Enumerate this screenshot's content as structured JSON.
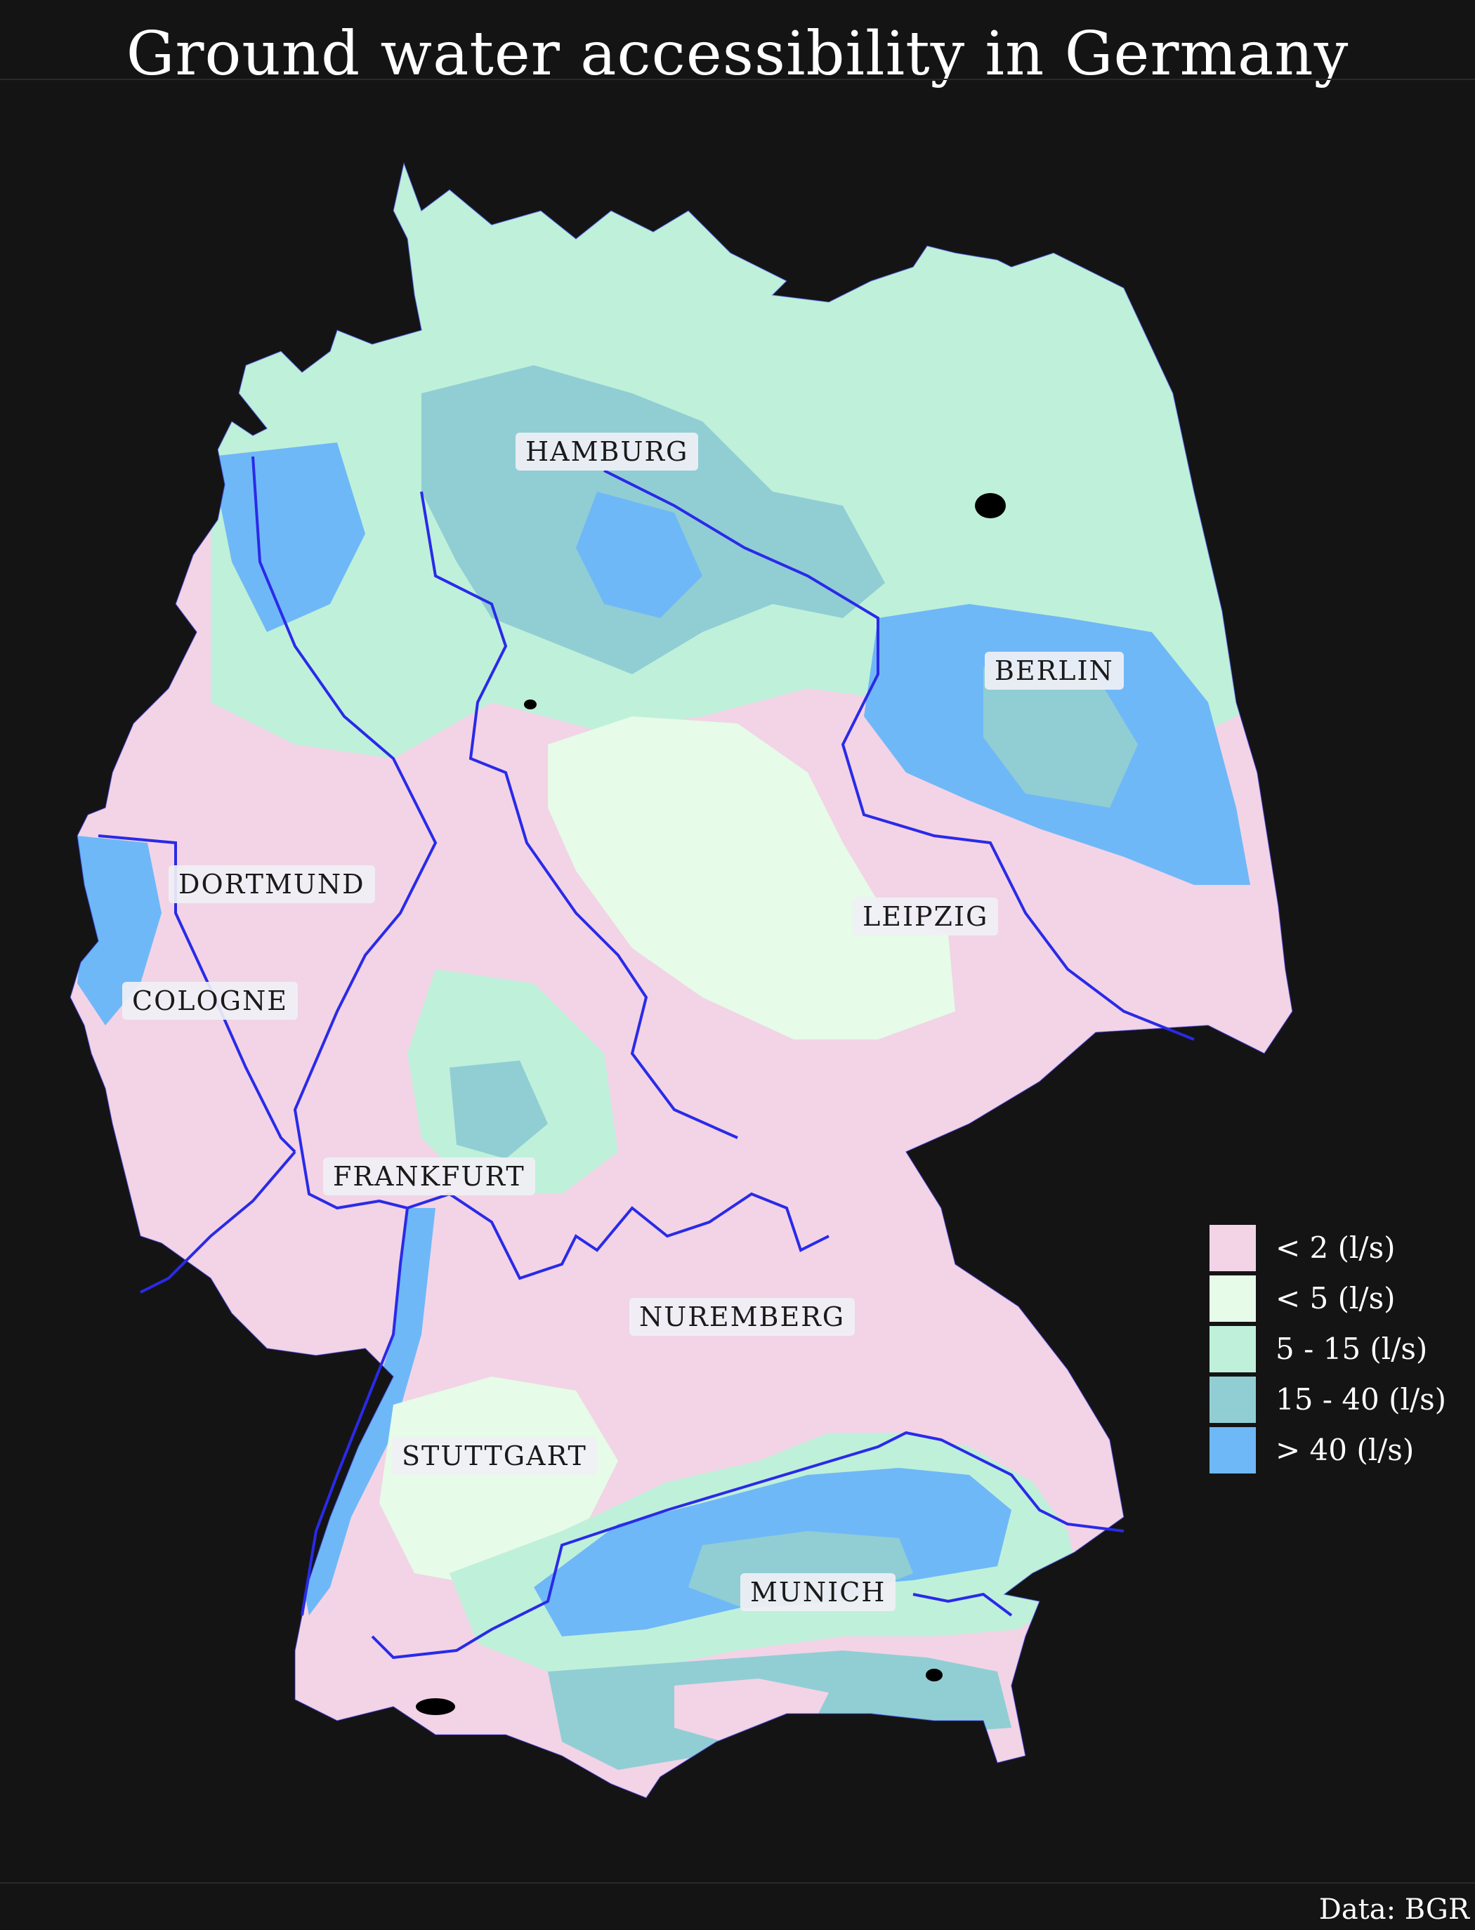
{
  "title": "Ground water accessibility in Germany",
  "source": "Data: BGR",
  "colors": {
    "background": "#141414",
    "class_lt2": "#f2d4e6",
    "class_lt5": "#e6fbe8",
    "class_5_15": "#bff0da",
    "class_15_40": "#90ced4",
    "class_gt40": "#6fb8f7",
    "river": "#2a2ae8",
    "lake": "#000000"
  },
  "legend": [
    {
      "label": "< 2 (l/s)",
      "color": "#f2d4e6"
    },
    {
      "label": "< 5 (l/s)",
      "color": "#e6fbe8"
    },
    {
      "label": "5 - 15 (l/s)",
      "color": "#bff0da"
    },
    {
      "label": "15 - 40 (l/s)",
      "color": "#90ced4"
    },
    {
      "label": "> 40 (l/s)",
      "color": "#6fb8f7"
    }
  ],
  "cities": {
    "hamburg": "HAMBURG",
    "berlin": "BERLIN",
    "dortmund": "DORTMUND",
    "leipzig": "LEIPZIG",
    "cologne": "COLOGNE",
    "frankfurt": "FRANKFURT",
    "nuremberg": "NUREMBERG",
    "stuttgart": "STUTTGART",
    "munich": "MUNICH"
  }
}
